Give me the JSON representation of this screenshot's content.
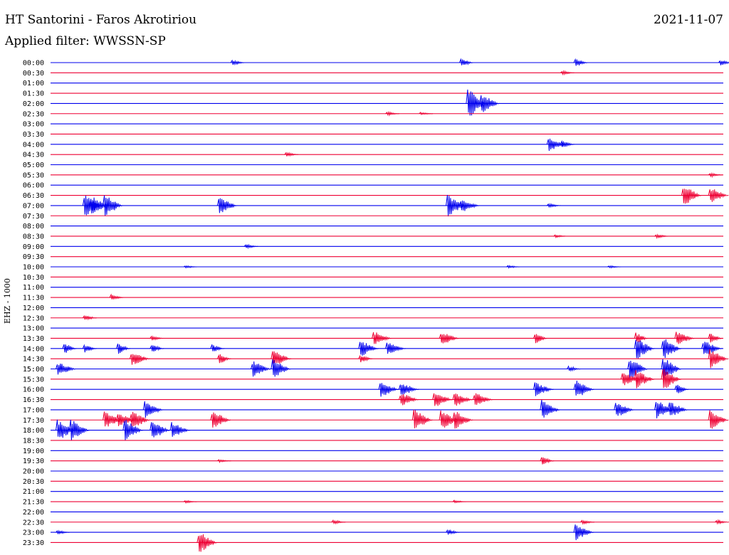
{
  "header": {
    "station": "HT Santorini - Faros Akrotiriou",
    "date": "2021-11-07",
    "filter": "Applied filter: WWSSN-SP"
  },
  "channel_label": "EHZ - 1000",
  "colors": {
    "even_trace": "#0000ee",
    "odd_trace": "#ee0033"
  },
  "chart_data": {
    "type": "helicorder",
    "title": "HT Santorini - Faros Akrotiriou",
    "date": "2021-11-07",
    "ylabel": "EHZ - 1000",
    "row_interval_minutes": 30,
    "rows": [
      {
        "label": "00:00",
        "events": [
          [
            0.27,
            4
          ],
          [
            0.61,
            6
          ],
          [
            0.78,
            6
          ],
          [
            0.995,
            4
          ]
        ]
      },
      {
        "label": "00:30",
        "events": [
          [
            0.76,
            3
          ]
        ]
      },
      {
        "label": "01:00",
        "events": []
      },
      {
        "label": "01:30",
        "events": []
      },
      {
        "label": "02:00",
        "events": [
          [
            0.62,
            22
          ],
          [
            0.64,
            14
          ]
        ]
      },
      {
        "label": "02:30",
        "events": [
          [
            0.5,
            3
          ],
          [
            0.55,
            2
          ]
        ]
      },
      {
        "label": "03:00",
        "events": []
      },
      {
        "label": "03:30",
        "events": []
      },
      {
        "label": "04:00",
        "events": [
          [
            0.74,
            10
          ],
          [
            0.76,
            5
          ]
        ]
      },
      {
        "label": "04:30",
        "events": [
          [
            0.35,
            3
          ]
        ]
      },
      {
        "label": "05:00",
        "events": []
      },
      {
        "label": "05:30",
        "events": [
          [
            0.98,
            3
          ]
        ]
      },
      {
        "label": "06:00",
        "events": []
      },
      {
        "label": "06:30",
        "events": [
          [
            0.94,
            16
          ],
          [
            0.98,
            12
          ]
        ]
      },
      {
        "label": "07:00",
        "events": [
          [
            0.05,
            16
          ],
          [
            0.06,
            14
          ],
          [
            0.08,
            16
          ],
          [
            0.25,
            14
          ],
          [
            0.59,
            16
          ],
          [
            0.61,
            10
          ],
          [
            0.74,
            3
          ]
        ]
      },
      {
        "label": "07:30",
        "events": []
      },
      {
        "label": "08:00",
        "events": []
      },
      {
        "label": "08:30",
        "events": [
          [
            0.75,
            2
          ],
          [
            0.9,
            3
          ]
        ]
      },
      {
        "label": "09:00",
        "events": [
          [
            0.29,
            3
          ]
        ]
      },
      {
        "label": "09:30",
        "events": []
      },
      {
        "label": "10:00",
        "events": [
          [
            0.2,
            2
          ],
          [
            0.68,
            2
          ],
          [
            0.83,
            2
          ]
        ]
      },
      {
        "label": "10:30",
        "events": []
      },
      {
        "label": "11:00",
        "events": []
      },
      {
        "label": "11:30",
        "events": [
          [
            0.09,
            4
          ]
        ]
      },
      {
        "label": "12:00",
        "events": []
      },
      {
        "label": "12:30",
        "events": [
          [
            0.05,
            4
          ]
        ]
      },
      {
        "label": "13:00",
        "events": []
      },
      {
        "label": "13:30",
        "events": [
          [
            0.15,
            3
          ],
          [
            0.48,
            10
          ],
          [
            0.58,
            10
          ],
          [
            0.72,
            8
          ],
          [
            0.87,
            8
          ],
          [
            0.93,
            10
          ],
          [
            0.98,
            8
          ]
        ]
      },
      {
        "label": "14:00",
        "events": [
          [
            0.02,
            8
          ],
          [
            0.05,
            6
          ],
          [
            0.1,
            8
          ],
          [
            0.15,
            6
          ],
          [
            0.24,
            6
          ],
          [
            0.46,
            12
          ],
          [
            0.5,
            10
          ],
          [
            0.87,
            16
          ],
          [
            0.91,
            16
          ],
          [
            0.97,
            12
          ]
        ]
      },
      {
        "label": "14:30",
        "events": [
          [
            0.12,
            10
          ],
          [
            0.25,
            8
          ],
          [
            0.33,
            12
          ],
          [
            0.46,
            6
          ],
          [
            0.98,
            14
          ]
        ]
      },
      {
        "label": "15:00",
        "events": [
          [
            0.01,
            10
          ],
          [
            0.3,
            12
          ],
          [
            0.33,
            14
          ],
          [
            0.77,
            4
          ],
          [
            0.86,
            16
          ],
          [
            0.91,
            18
          ]
        ]
      },
      {
        "label": "15:30",
        "events": [
          [
            0.85,
            10
          ],
          [
            0.87,
            14
          ],
          [
            0.91,
            16
          ]
        ]
      },
      {
        "label": "16:00",
        "events": [
          [
            0.49,
            12
          ],
          [
            0.52,
            10
          ],
          [
            0.72,
            10
          ],
          [
            0.78,
            14
          ],
          [
            0.93,
            8
          ]
        ]
      },
      {
        "label": "16:30",
        "events": [
          [
            0.52,
            10
          ],
          [
            0.57,
            12
          ],
          [
            0.6,
            10
          ],
          [
            0.63,
            10
          ]
        ]
      },
      {
        "label": "17:00",
        "events": [
          [
            0.14,
            12
          ],
          [
            0.73,
            14
          ],
          [
            0.84,
            12
          ],
          [
            0.9,
            14
          ],
          [
            0.92,
            12
          ]
        ]
      },
      {
        "label": "17:30",
        "events": [
          [
            0.08,
            12
          ],
          [
            0.1,
            10
          ],
          [
            0.12,
            14
          ],
          [
            0.24,
            14
          ],
          [
            0.54,
            16
          ],
          [
            0.58,
            14
          ],
          [
            0.6,
            14
          ],
          [
            0.98,
            14
          ]
        ]
      },
      {
        "label": "18:00",
        "events": [
          [
            0.01,
            16
          ],
          [
            0.03,
            16
          ],
          [
            0.11,
            16
          ],
          [
            0.15,
            14
          ],
          [
            0.18,
            12
          ]
        ]
      },
      {
        "label": "18:30",
        "events": []
      },
      {
        "label": "19:00",
        "events": []
      },
      {
        "label": "19:30",
        "events": [
          [
            0.25,
            2
          ],
          [
            0.73,
            6
          ]
        ]
      },
      {
        "label": "20:00",
        "events": []
      },
      {
        "label": "20:30",
        "events": []
      },
      {
        "label": "21:00",
        "events": []
      },
      {
        "label": "21:30",
        "events": [
          [
            0.2,
            2
          ],
          [
            0.6,
            2
          ]
        ]
      },
      {
        "label": "22:00",
        "events": []
      },
      {
        "label": "22:30",
        "events": [
          [
            0.42,
            3
          ],
          [
            0.79,
            3
          ],
          [
            0.99,
            3
          ]
        ]
      },
      {
        "label": "23:00",
        "events": [
          [
            0.01,
            3
          ],
          [
            0.59,
            4
          ],
          [
            0.78,
            12
          ]
        ]
      },
      {
        "label": "23:30",
        "events": [
          [
            0.22,
            16
          ]
        ]
      }
    ]
  }
}
